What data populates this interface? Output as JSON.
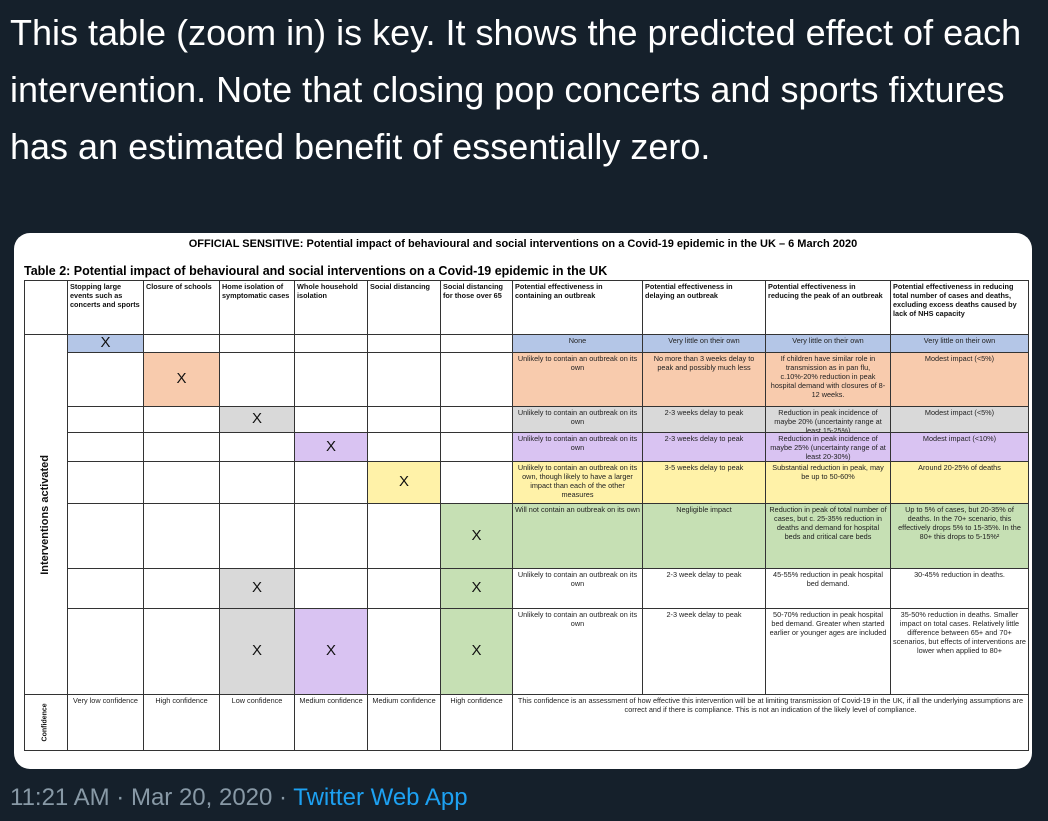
{
  "tweet": {
    "text": "This table (zoom in) is key. It shows the predicted effect of each intervention. Note that closing pop concerts and sports fixtures has an estimated benefit of essentially zero.",
    "time": "11:21 AM · Mar 20, 2020 · ",
    "app": "Twitter Web App"
  },
  "document": {
    "header": "OFFICIAL SENSITIVE: Potential impact of behavioural and social interventions on a Covid-19 epidemic in the UK – 6 March 2020",
    "table_title": "Table 2: Potential impact of behavioural and social interventions on a Covid-19 epidemic in the UK",
    "side_label": "Interventions activated",
    "confidence_label": "Confidence",
    "columns": [
      "Stopping large events such as concerts and sports",
      "Closure of schools",
      "Home isolation of symptomatic cases",
      "Whole household isolation",
      "Social distancing",
      "Social distancing for those over 65",
      "Potential effectiveness in containing an outbreak",
      "Potential effectiveness in delaying an outbreak",
      "Potential effectiveness in reducing the peak of an outbreak",
      "Potential effectiveness in reducing total number of cases and deaths, excluding excess deaths caused by lack of NHS capacity"
    ],
    "mark": "X",
    "rows": [
      [
        "None",
        "Very little on their own",
        "Very little on their own",
        "Very little on their own"
      ],
      [
        "Unlikely to contain an outbreak on its own",
        "No more than 3 weeks delay to peak and possibly much less",
        "If children have similar role in transmission as in pan flu, c.10%-20% reduction in peak hospital demand with closures of 8-12 weeks.",
        "Modest impact (<5%)"
      ],
      [
        "Unlikely to contain an outbreak on its own",
        "2-3 weeks delay to peak",
        "Reduction in peak incidence of maybe 20% (uncertainty range at least 15-25%)",
        "Modest impact (<5%)"
      ],
      [
        "Unlikely to contain an outbreak on its own",
        "2-3 weeks delay to peak",
        "Reduction in peak incidence of maybe 25% (uncertainty range of at least 20-30%)",
        "Modest impact (<10%)"
      ],
      [
        "Unlikely to contain an outbreak on its own, though likely to have a larger impact than each of the other measures",
        "3-5 weeks delay to peak",
        "Substantial reduction in peak, may be up to 50-60%",
        "Around 20-25% of deaths"
      ],
      [
        "Will not contain an outbreak on its own",
        "Negligible impact",
        "Reduction in peak of total number of cases, but c. 25-35% reduction in deaths and demand for hospital beds and critical care beds",
        "Up to 5% of cases, but 20-35% of deaths. In the 70+ scenario, this effectively drops 5% to 15-35%. In the 80+ this drops to 5-15%²"
      ],
      [
        "Unlikely to contain an outbreak on its own",
        "2-3 week delay to peak",
        "45-55% reduction in peak hospital bed demand.",
        "30-45% reduction in deaths."
      ],
      [
        "Unlikely to contain an outbreak on its own",
        "2-3 week delay to peak",
        "50-70% reduction in peak hospital bed demand. Greater when started earlier or younger ages are included",
        "35-50% reduction in deaths. Smaller impact on total cases. Relatively little difference between 65+ and 70+ scenarios, but effects of interventions are lower when applied to 80+"
      ]
    ],
    "confidence": [
      "Very low confidence",
      "High confidence",
      "Low confidence",
      "Medium confidence",
      "Medium confidence",
      "High confidence"
    ],
    "confidence_note": "This confidence is an assessment of how effective this intervention will be at limiting transmission of Covid-19 in the UK, if all the underlying assumptions are correct and if there is compliance. This is not an indication of the likely level of compliance."
  },
  "colors": {
    "background": "#15202b",
    "blue": "#b4c6e7",
    "orange": "#f8cbad",
    "grey": "#d9d9d9",
    "purple": "#d9c3f2",
    "yellow": "#fff2a8",
    "green": "#c6e0b4",
    "link": "#1da1f2"
  }
}
